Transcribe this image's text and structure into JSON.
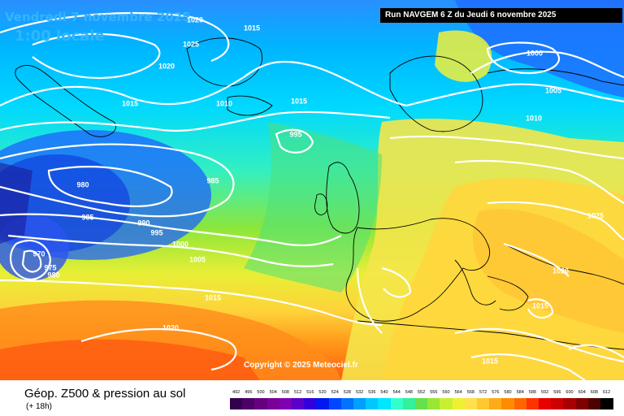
{
  "header": {
    "date": "Vendredi 7 novembre 2025",
    "local_time": "1:00 locale",
    "run": "Run NAVGEM 6 Z du Jeudi 6 novembre 2025"
  },
  "copyright": "Copyright © 2025 Meteociel.fr",
  "footer": {
    "title": "Géop. Z500 & pression au sol",
    "lead_time": "(+ 18h)"
  },
  "scale": {
    "labels": [
      "492",
      "496",
      "500",
      "504",
      "508",
      "512",
      "516",
      "520",
      "524",
      "528",
      "532",
      "536",
      "540",
      "544",
      "548",
      "552",
      "556",
      "560",
      "564",
      "568",
      "572",
      "576",
      "580",
      "584",
      "588",
      "592",
      "596",
      "600",
      "604",
      "608",
      "612"
    ],
    "colors": [
      "#33004d",
      "#4d0066",
      "#660080",
      "#7a0099",
      "#7f00b3",
      "#5a00c8",
      "#3300dd",
      "#0019ee",
      "#0047ff",
      "#0073ff",
      "#00a0ff",
      "#00c8ff",
      "#00e6ff",
      "#33ffcc",
      "#33f099",
      "#66e04d",
      "#99e633",
      "#c8f033",
      "#f0f033",
      "#ffe14d",
      "#ffc833",
      "#ffaa1a",
      "#ff8c00",
      "#ff6600",
      "#ff3300",
      "#e60000",
      "#cc0000",
      "#a80000",
      "#800000",
      "#4d0000",
      "#000000"
    ]
  },
  "isobars": [
    {
      "text": "1020"
    },
    {
      "text": "1015"
    },
    {
      "text": "1025"
    },
    {
      "text": "1020"
    },
    {
      "text": "1015"
    },
    {
      "text": "1010"
    },
    {
      "text": "1015"
    },
    {
      "text": "995"
    },
    {
      "text": "980"
    },
    {
      "text": "985"
    },
    {
      "text": "985"
    },
    {
      "text": "990"
    },
    {
      "text": "995"
    },
    {
      "text": "1000"
    },
    {
      "text": "1005"
    },
    {
      "text": "970"
    },
    {
      "text": "975"
    },
    {
      "text": "980"
    },
    {
      "text": "1015"
    },
    {
      "text": "1020"
    },
    {
      "text": "1000"
    },
    {
      "text": "1005"
    },
    {
      "text": "1010"
    },
    {
      "text": "1025"
    },
    {
      "text": "1020"
    },
    {
      "text": "1015"
    },
    {
      "text": "1015"
    }
  ]
}
